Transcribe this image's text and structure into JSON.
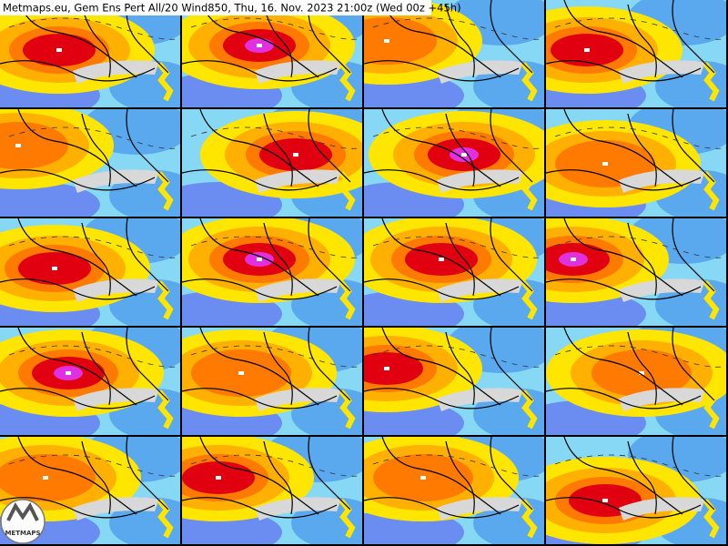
{
  "header": {
    "title": "Metmaps.eu, Gem Ens Pert All/20 Wind850, Thu, 16. Nov. 2023 21:00z (Wed 00z +45h)"
  },
  "logo": {
    "text": "METMAPS"
  }
}
